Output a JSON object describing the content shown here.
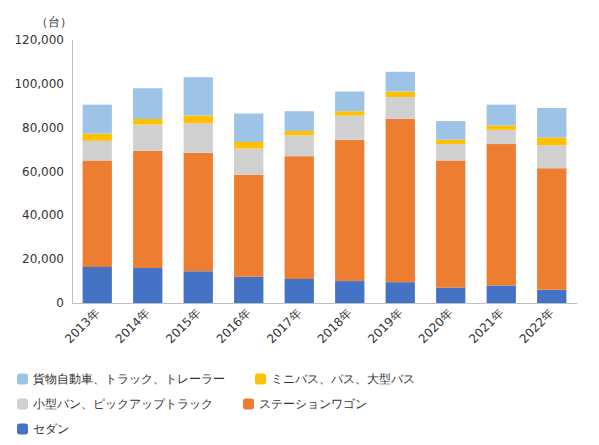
{
  "chart_data": {
    "type": "bar",
    "stacked": true,
    "y_label": "（台）",
    "categories": [
      "2013年",
      "2014年",
      "2015年",
      "2016年",
      "2017年",
      "2018年",
      "2019年",
      "2020年",
      "2021年",
      "2022年"
    ],
    "series": [
      {
        "name": "セダン",
        "color": "#4472C4",
        "values": [
          16400,
          16000,
          14500,
          12000,
          11000,
          10000,
          9500,
          7000,
          8000,
          6000
        ]
      },
      {
        "name": "ステーションワゴン",
        "color": "#ED7D31",
        "values": [
          48600,
          53500,
          54000,
          46500,
          56000,
          64500,
          74500,
          58000,
          64500,
          55500
        ]
      },
      {
        "name": "小型バン、ピックアップトラック",
        "color": "#D0D0D0",
        "values": [
          9000,
          12000,
          13500,
          12000,
          9500,
          11000,
          10000,
          7500,
          6500,
          10500
        ]
      },
      {
        "name": "ミニバス、バス、大型バス",
        "color": "#FFC000",
        "values": [
          3300,
          2500,
          3500,
          3000,
          2000,
          2000,
          2500,
          2000,
          2000,
          3500
        ]
      },
      {
        "name": "貨物自動車、トラック、トレーラー",
        "color": "#9DC3E6",
        "values": [
          13200,
          14000,
          17500,
          13000,
          9000,
          9000,
          9000,
          8500,
          9500,
          13500
        ]
      }
    ],
    "ylim": [
      0,
      120000
    ],
    "yticks": [
      0,
      {
        "value": 20000,
        "label": "20,000"
      },
      {
        "value": 40000,
        "label": "40,000"
      },
      {
        "value": 60000,
        "label": "60,000"
      },
      {
        "value": 80000,
        "label": "80,000"
      },
      {
        "value": 100000,
        "label": "100,000"
      },
      {
        "value": 120000,
        "label": "120,000"
      }
    ],
    "grid": false,
    "legend": "bottom"
  }
}
